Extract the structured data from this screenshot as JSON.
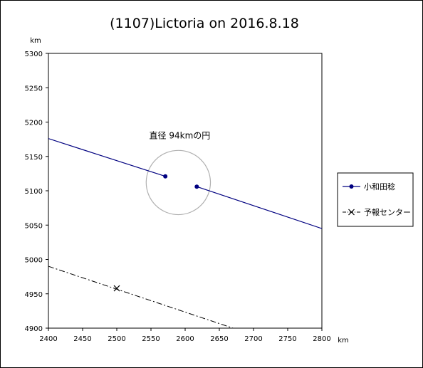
{
  "chart_data": {
    "type": "line",
    "title": "(1107)Lictoria on 2016.8.18",
    "xlabel": "km",
    "ylabel": "km",
    "xlim": [
      2400,
      2800
    ],
    "ylim": [
      4900,
      5300
    ],
    "x_ticks": [
      "2400",
      "2450",
      "2500",
      "2550",
      "2600",
      "2650",
      "2700",
      "2750",
      "2800"
    ],
    "y_ticks": [
      "5300",
      "5250",
      "5200",
      "5150",
      "5100",
      "5050",
      "5000",
      "4950",
      "4900"
    ],
    "grid": false,
    "legend_position": "right",
    "annotation": "直径 94kmの円",
    "circle": {
      "center": [
        2590,
        5112
      ],
      "diameter": 94
    },
    "series": [
      {
        "name": "小和田稔",
        "style": "solid-with-markers",
        "color": "#000080",
        "segments": [
          {
            "line": [
              [
                2400,
                5176
              ],
              [
                2571,
                5121
              ]
            ],
            "marker": [
              2571,
              5121
            ]
          },
          {
            "line": [
              [
                2617,
                5106
              ],
              [
                2800,
                5045
              ]
            ],
            "marker": [
              2617,
              5106
            ]
          }
        ]
      },
      {
        "name": "予報センター",
        "style": "dash-dot",
        "color": "#000000",
        "line": [
          [
            2400,
            4990
          ],
          [
            2670,
            4900
          ]
        ],
        "marker": [
          2500,
          4958
        ]
      }
    ]
  }
}
